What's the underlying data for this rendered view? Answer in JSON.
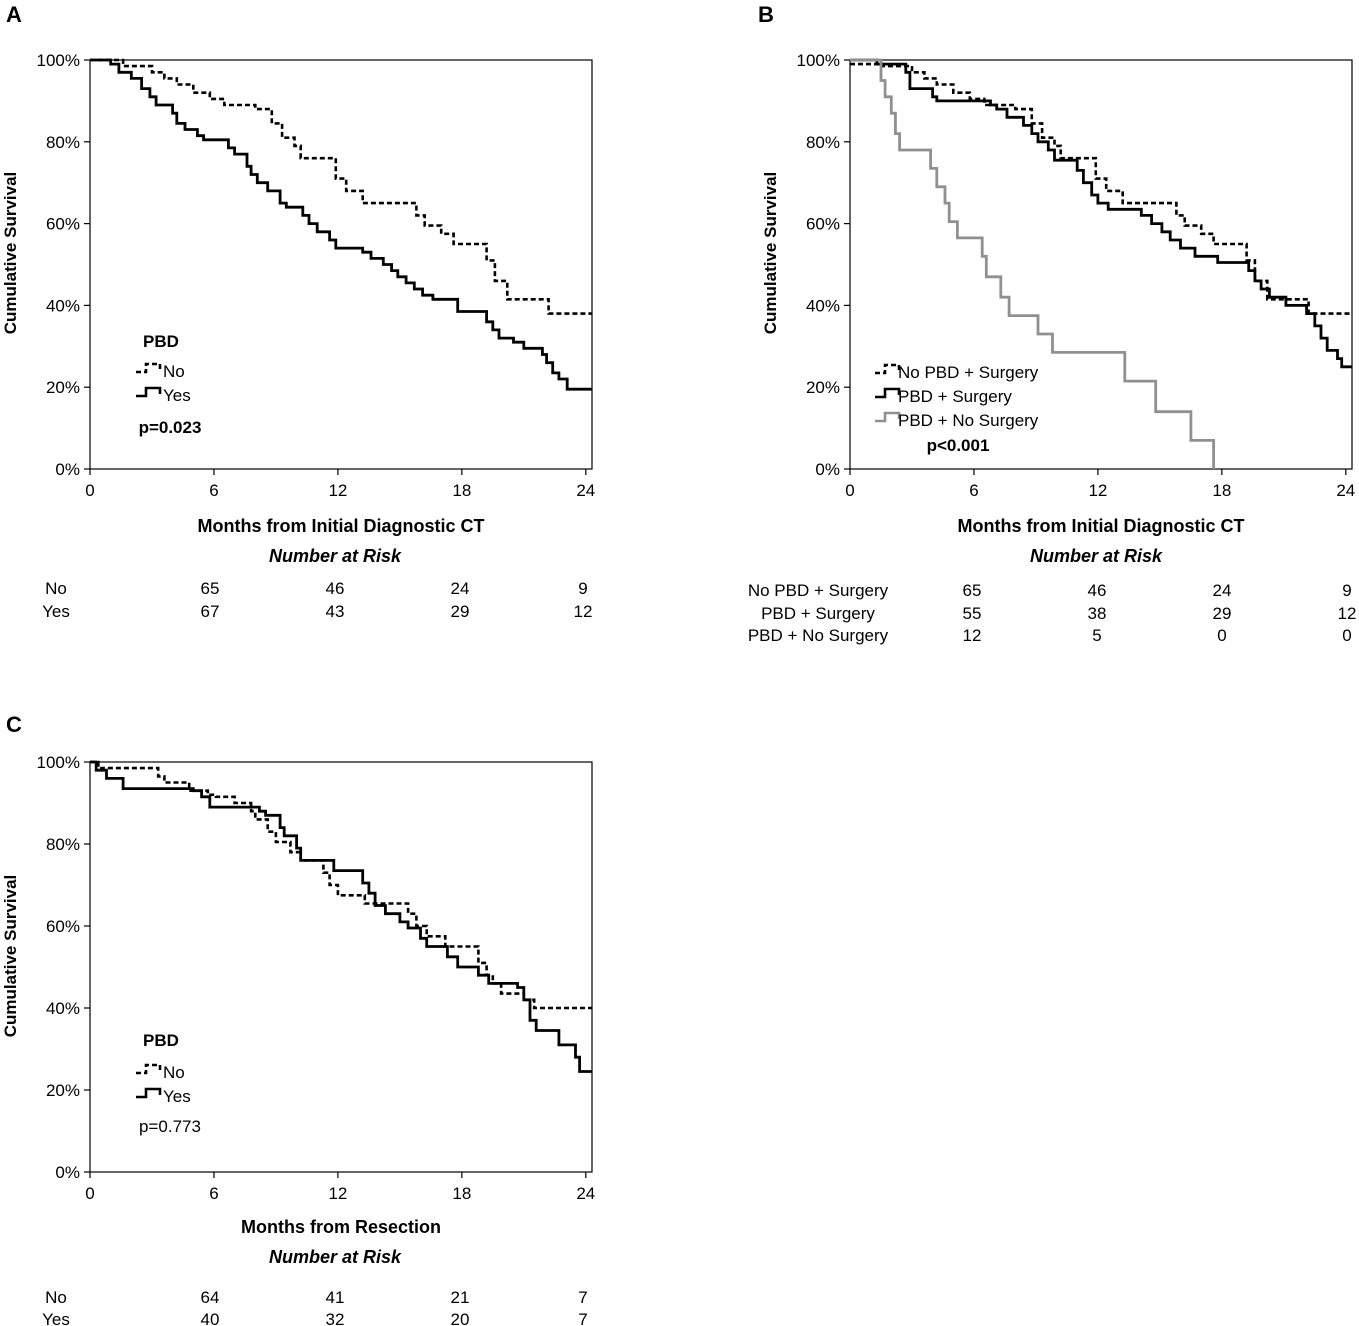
{
  "chart_data": [
    {
      "type": "line",
      "panel_label": "A",
      "xlabel": "Months from Initial Diagnostic CT",
      "ylabel": "Cumulative Survival",
      "xlim": [
        0,
        24.3
      ],
      "ylim": [
        0,
        100
      ],
      "xticks": [
        "0",
        "6",
        "12",
        "18",
        "24"
      ],
      "xtick_values": [
        0,
        6,
        12,
        18,
        24
      ],
      "yticks": [
        "0%",
        "20%",
        "40%",
        "60%",
        "80%",
        "100%"
      ],
      "ytick_values": [
        0,
        20,
        40,
        60,
        80,
        100
      ],
      "legend_title": "PBD",
      "legend_position": "lower-left",
      "p_value": "p=0.023",
      "p_bold": true,
      "series": [
        {
          "name": "No",
          "style": "dashed",
          "color": "#000000",
          "points": [
            [
              0,
              100
            ],
            [
              1.2,
              100
            ],
            [
              1.6,
              98.5
            ],
            [
              3.0,
              97
            ],
            [
              3.6,
              95.5
            ],
            [
              4.2,
              94
            ],
            [
              5.0,
              92
            ],
            [
              5.8,
              90.5
            ],
            [
              6.5,
              89
            ],
            [
              8.0,
              88
            ],
            [
              8.8,
              84.5
            ],
            [
              9.3,
              81
            ],
            [
              9.9,
              79
            ],
            [
              10.2,
              76
            ],
            [
              11.9,
              71
            ],
            [
              12.4,
              68
            ],
            [
              13.2,
              65
            ],
            [
              15.8,
              62
            ],
            [
              16.2,
              59.5
            ],
            [
              17.0,
              57.5
            ],
            [
              17.6,
              55
            ],
            [
              19.2,
              51
            ],
            [
              19.6,
              46
            ],
            [
              20.2,
              41.5
            ],
            [
              22.2,
              38
            ],
            [
              24.3,
              38
            ]
          ]
        },
        {
          "name": "Yes",
          "style": "solid",
          "color": "#000000",
          "points": [
            [
              0,
              100
            ],
            [
              1.0,
              99
            ],
            [
              1.4,
              97
            ],
            [
              2.0,
              95.5
            ],
            [
              2.5,
              93
            ],
            [
              2.9,
              91
            ],
            [
              3.2,
              89
            ],
            [
              4.0,
              87
            ],
            [
              4.2,
              84.5
            ],
            [
              4.6,
              83
            ],
            [
              5.2,
              81.5
            ],
            [
              5.5,
              80.5
            ],
            [
              6.7,
              78.5
            ],
            [
              7.0,
              77
            ],
            [
              7.6,
              74
            ],
            [
              7.8,
              72
            ],
            [
              8.1,
              70
            ],
            [
              8.6,
              68
            ],
            [
              9.2,
              65
            ],
            [
              9.5,
              64
            ],
            [
              10.3,
              62
            ],
            [
              10.6,
              60
            ],
            [
              11.0,
              58
            ],
            [
              11.6,
              56
            ],
            [
              11.9,
              54
            ],
            [
              13.2,
              53
            ],
            [
              13.6,
              51.5
            ],
            [
              14.2,
              50
            ],
            [
              14.6,
              48.5
            ],
            [
              14.9,
              47
            ],
            [
              15.3,
              45.5
            ],
            [
              15.7,
              44
            ],
            [
              16.1,
              42.5
            ],
            [
              16.6,
              41.5
            ],
            [
              17.8,
              38.5
            ],
            [
              19.2,
              36
            ],
            [
              19.5,
              34
            ],
            [
              19.8,
              32
            ],
            [
              20.5,
              31
            ],
            [
              21.0,
              29.5
            ],
            [
              21.9,
              28
            ],
            [
              22.1,
              26
            ],
            [
              22.4,
              23.5
            ],
            [
              22.7,
              22
            ],
            [
              23.1,
              19.5
            ],
            [
              24.3,
              19.5
            ]
          ]
        }
      ],
      "risk_table": {
        "title": "Number at Risk",
        "rows": [
          {
            "label": "No",
            "values": [
              "65",
              "46",
              "24",
              "9"
            ]
          },
          {
            "label": "Yes",
            "values": [
              "67",
              "43",
              "29",
              "12"
            ]
          }
        ]
      }
    },
    {
      "type": "line",
      "panel_label": "B",
      "xlabel": "Months from Initial Diagnostic CT",
      "ylabel": "Cumulative Survival",
      "xlim": [
        0,
        24.3
      ],
      "ylim": [
        0,
        100
      ],
      "xticks": [
        "0",
        "6",
        "12",
        "18",
        "24"
      ],
      "xtick_values": [
        0,
        6,
        12,
        18,
        24
      ],
      "yticks": [
        "0%",
        "20%",
        "40%",
        "60%",
        "80%",
        "100%"
      ],
      "ytick_values": [
        0,
        20,
        40,
        60,
        80,
        100
      ],
      "legend_position": "lower-left",
      "p_value": "p<0.001",
      "p_bold": true,
      "series": [
        {
          "name": "No PBD + Surgery",
          "style": "dashed",
          "color": "#000000",
          "points": [
            [
              0,
              99
            ],
            [
              1.2,
              99
            ],
            [
              1.6,
              98.5
            ],
            [
              3.0,
              97
            ],
            [
              3.6,
              95.5
            ],
            [
              4.2,
              94
            ],
            [
              5.0,
              92
            ],
            [
              5.8,
              90.5
            ],
            [
              6.5,
              89
            ],
            [
              8.0,
              88
            ],
            [
              8.8,
              84.5
            ],
            [
              9.3,
              81
            ],
            [
              9.9,
              79
            ],
            [
              10.2,
              76
            ],
            [
              11.9,
              71
            ],
            [
              12.4,
              68
            ],
            [
              13.2,
              65
            ],
            [
              15.8,
              62
            ],
            [
              16.2,
              59.5
            ],
            [
              17.0,
              57.5
            ],
            [
              17.6,
              55
            ],
            [
              19.2,
              51
            ],
            [
              19.6,
              46
            ],
            [
              20.2,
              41.5
            ],
            [
              22.2,
              38
            ],
            [
              24.3,
              38
            ]
          ]
        },
        {
          "name": "PBD + Surgery",
          "style": "solid",
          "color": "#000000",
          "points": [
            [
              0,
              100
            ],
            [
              1.3,
              99
            ],
            [
              2.7,
              97
            ],
            [
              2.9,
              93
            ],
            [
              4.0,
              91
            ],
            [
              4.2,
              90
            ],
            [
              6.8,
              89
            ],
            [
              7.1,
              88
            ],
            [
              7.6,
              86
            ],
            [
              8.4,
              84
            ],
            [
              8.8,
              82
            ],
            [
              9.1,
              80
            ],
            [
              9.6,
              78
            ],
            [
              9.9,
              75.5
            ],
            [
              11.0,
              73
            ],
            [
              11.3,
              70
            ],
            [
              11.7,
              67
            ],
            [
              12.0,
              65
            ],
            [
              12.5,
              63.5
            ],
            [
              14.1,
              62
            ],
            [
              14.6,
              60
            ],
            [
              15.1,
              58
            ],
            [
              15.5,
              56
            ],
            [
              16.0,
              54
            ],
            [
              16.7,
              52
            ],
            [
              17.8,
              50.5
            ],
            [
              19.3,
              48.5
            ],
            [
              19.6,
              46
            ],
            [
              19.9,
              44
            ],
            [
              20.3,
              42
            ],
            [
              21.1,
              40
            ],
            [
              22.1,
              38
            ],
            [
              22.5,
              35
            ],
            [
              22.8,
              32
            ],
            [
              23.1,
              29
            ],
            [
              23.6,
              27
            ],
            [
              23.8,
              25
            ],
            [
              24.3,
              25
            ]
          ]
        },
        {
          "name": "PBD + No Surgery",
          "style": "solid",
          "color": "#909090",
          "points": [
            [
              0,
              100
            ],
            [
              1.3,
              100
            ],
            [
              1.5,
              95
            ],
            [
              1.7,
              91
            ],
            [
              2.0,
              87
            ],
            [
              2.2,
              82
            ],
            [
              2.4,
              78
            ],
            [
              3.9,
              73.5
            ],
            [
              4.2,
              69
            ],
            [
              4.6,
              65
            ],
            [
              4.8,
              60.5
            ],
            [
              5.2,
              56.5
            ],
            [
              6.4,
              52
            ],
            [
              6.6,
              47
            ],
            [
              7.3,
              42
            ],
            [
              7.7,
              37.5
            ],
            [
              9.1,
              33
            ],
            [
              9.8,
              28.5
            ],
            [
              13.3,
              21.5
            ],
            [
              14.8,
              14
            ],
            [
              16.5,
              7
            ],
            [
              17.6,
              0
            ]
          ]
        }
      ],
      "risk_table": {
        "title": "Number at Risk",
        "rows": [
          {
            "label": "No PBD + Surgery",
            "values": [
              "65",
              "46",
              "24",
              "9"
            ]
          },
          {
            "label": "PBD + Surgery",
            "values": [
              "55",
              "38",
              "29",
              "12"
            ]
          },
          {
            "label": "PBD + No Surgery",
            "values": [
              "12",
              "5",
              "0",
              "0"
            ]
          }
        ]
      }
    },
    {
      "type": "line",
      "panel_label": "C",
      "xlabel": "Months from Resection",
      "ylabel": "Cumulative Survival",
      "xlim": [
        0,
        24.3
      ],
      "ylim": [
        0,
        100
      ],
      "xticks": [
        "0",
        "6",
        "12",
        "18",
        "24"
      ],
      "xtick_values": [
        0,
        6,
        12,
        18,
        24
      ],
      "yticks": [
        "0%",
        "20%",
        "40%",
        "60%",
        "80%",
        "100%"
      ],
      "ytick_values": [
        0,
        20,
        40,
        60,
        80,
        100
      ],
      "legend_title": "PBD",
      "legend_position": "lower-left",
      "p_value": "p=0.773",
      "p_bold": false,
      "series": [
        {
          "name": "No",
          "style": "dashed",
          "color": "#000000",
          "points": [
            [
              0,
              100
            ],
            [
              0.4,
              98.5
            ],
            [
              3.0,
              98.5
            ],
            [
              3.3,
              96.5
            ],
            [
              3.6,
              95
            ],
            [
              4.8,
              93
            ],
            [
              5.7,
              92
            ],
            [
              6.1,
              91.5
            ],
            [
              7.0,
              90
            ],
            [
              7.8,
              88
            ],
            [
              8.0,
              86
            ],
            [
              8.6,
              83
            ],
            [
              9.0,
              80.5
            ],
            [
              9.7,
              78
            ],
            [
              10.2,
              76
            ],
            [
              11.3,
              73
            ],
            [
              11.6,
              70
            ],
            [
              12.0,
              67.5
            ],
            [
              13.3,
              65.5
            ],
            [
              15.4,
              63
            ],
            [
              15.8,
              60
            ],
            [
              16.3,
              57.5
            ],
            [
              17.2,
              55
            ],
            [
              18.8,
              51
            ],
            [
              19.2,
              48
            ],
            [
              19.5,
              46
            ],
            [
              19.9,
              43.5
            ],
            [
              21.0,
              42
            ],
            [
              21.5,
              40
            ],
            [
              24.3,
              40
            ]
          ]
        },
        {
          "name": "Yes",
          "style": "solid",
          "color": "#000000",
          "points": [
            [
              0,
              100
            ],
            [
              0.3,
              98
            ],
            [
              0.8,
              96
            ],
            [
              1.6,
              93.5
            ],
            [
              5.0,
              93
            ],
            [
              5.4,
              91.5
            ],
            [
              5.8,
              89
            ],
            [
              8.2,
              88
            ],
            [
              8.5,
              87
            ],
            [
              9.2,
              84
            ],
            [
              9.4,
              82
            ],
            [
              10.0,
              79
            ],
            [
              10.2,
              76
            ],
            [
              11.8,
              73.5
            ],
            [
              13.2,
              70.5
            ],
            [
              13.5,
              68
            ],
            [
              13.8,
              65
            ],
            [
              14.3,
              63
            ],
            [
              15.0,
              61
            ],
            [
              15.4,
              59.5
            ],
            [
              16.0,
              57
            ],
            [
              16.3,
              55
            ],
            [
              17.3,
              52.5
            ],
            [
              17.8,
              50
            ],
            [
              18.8,
              48
            ],
            [
              19.3,
              46
            ],
            [
              20.7,
              45
            ],
            [
              21.0,
              42
            ],
            [
              21.3,
              37
            ],
            [
              21.6,
              34.5
            ],
            [
              22.7,
              31
            ],
            [
              23.5,
              28
            ],
            [
              23.7,
              24.5
            ],
            [
              24.3,
              24.5
            ]
          ]
        }
      ],
      "risk_table": {
        "title": "Number at Risk",
        "rows": [
          {
            "label": "No",
            "values": [
              "64",
              "41",
              "21",
              "7"
            ]
          },
          {
            "label": "Yes",
            "values": [
              "40",
              "32",
              "20",
              "7"
            ]
          }
        ]
      }
    }
  ]
}
